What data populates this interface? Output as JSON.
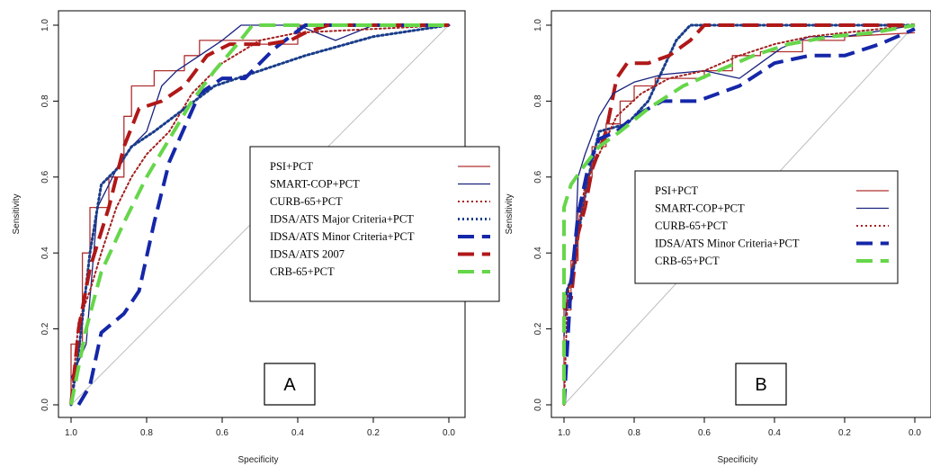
{
  "chart_data": [
    {
      "type": "line",
      "title": "",
      "xlabel": "Specificity",
      "ylabel": "Sensitivity",
      "xlim": [
        1.0,
        0.0
      ],
      "ylim": [
        0.0,
        1.0
      ],
      "x_ticks": [
        "1.0",
        "0.8",
        "0.6",
        "0.4",
        "0.2",
        "0.0"
      ],
      "y_ticks": [
        "0.0",
        "0.2",
        "0.4",
        "0.6",
        "0.8",
        "1.0"
      ],
      "panel_label": "A",
      "legend_position": "right",
      "reference_line": "diagonal",
      "series": [
        {
          "name": "PSI+PCT",
          "color": "#b03030",
          "style": "solid",
          "width": 1.3,
          "points": [
            [
              1.0,
              0.0
            ],
            [
              1.0,
              0.16
            ],
            [
              0.97,
              0.16
            ],
            [
              0.97,
              0.4
            ],
            [
              0.95,
              0.4
            ],
            [
              0.95,
              0.52
            ],
            [
              0.9,
              0.52
            ],
            [
              0.9,
              0.6
            ],
            [
              0.86,
              0.6
            ],
            [
              0.86,
              0.76
            ],
            [
              0.84,
              0.76
            ],
            [
              0.84,
              0.84
            ],
            [
              0.78,
              0.84
            ],
            [
              0.78,
              0.88
            ],
            [
              0.7,
              0.88
            ],
            [
              0.7,
              0.92
            ],
            [
              0.66,
              0.92
            ],
            [
              0.66,
              0.96
            ],
            [
              0.6,
              0.96
            ],
            [
              0.6,
              0.96
            ],
            [
              0.5,
              0.96
            ],
            [
              0.5,
              0.95
            ],
            [
              0.4,
              0.95
            ],
            [
              0.4,
              1.0
            ],
            [
              0.0,
              1.0
            ]
          ]
        },
        {
          "name": "SMART-COP+PCT",
          "color": "#1a237e",
          "style": "solid",
          "width": 1.3,
          "points": [
            [
              1.0,
              0.07
            ],
            [
              0.96,
              0.16
            ],
            [
              0.93,
              0.52
            ],
            [
              0.88,
              0.62
            ],
            [
              0.84,
              0.68
            ],
            [
              0.8,
              0.72
            ],
            [
              0.76,
              0.84
            ],
            [
              0.72,
              0.88
            ],
            [
              0.66,
              0.92
            ],
            [
              0.6,
              0.96
            ],
            [
              0.55,
              1.0
            ],
            [
              0.4,
              1.0
            ],
            [
              0.3,
              0.96
            ],
            [
              0.2,
              1.0
            ],
            [
              0.0,
              1.0
            ]
          ]
        },
        {
          "name": "CURB-65+PCT",
          "color": "#a32020",
          "style": "dot",
          "width": 2.0,
          "points": [
            [
              1.0,
              0.0
            ],
            [
              0.98,
              0.22
            ],
            [
              0.95,
              0.3
            ],
            [
              0.92,
              0.4
            ],
            [
              0.88,
              0.52
            ],
            [
              0.84,
              0.6
            ],
            [
              0.8,
              0.66
            ],
            [
              0.74,
              0.72
            ],
            [
              0.68,
              0.82
            ],
            [
              0.6,
              0.9
            ],
            [
              0.5,
              0.96
            ],
            [
              0.4,
              0.98
            ],
            [
              0.0,
              1.0
            ]
          ]
        },
        {
          "name": "IDSA/ATS Major Criteria+PCT",
          "color": "#1a3d8a",
          "style": "dot",
          "width": 3.0,
          "points": [
            [
              1.0,
              0.0
            ],
            [
              0.98,
              0.14
            ],
            [
              0.95,
              0.4
            ],
            [
              0.92,
              0.58
            ],
            [
              0.88,
              0.62
            ],
            [
              0.84,
              0.68
            ],
            [
              0.78,
              0.72
            ],
            [
              0.7,
              0.78
            ],
            [
              0.62,
              0.84
            ],
            [
              0.5,
              0.88
            ],
            [
              0.38,
              0.92
            ],
            [
              0.2,
              0.97
            ],
            [
              0.0,
              1.0
            ]
          ]
        },
        {
          "name": "IDSA/ATS Minor Criteria+PCT",
          "color": "#1527a8",
          "style": "dash",
          "width": 4.0,
          "points": [
            [
              0.98,
              0.0
            ],
            [
              0.95,
              0.05
            ],
            [
              0.92,
              0.19
            ],
            [
              0.86,
              0.24
            ],
            [
              0.82,
              0.3
            ],
            [
              0.78,
              0.48
            ],
            [
              0.74,
              0.64
            ],
            [
              0.7,
              0.73
            ],
            [
              0.66,
              0.82
            ],
            [
              0.6,
              0.86
            ],
            [
              0.54,
              0.86
            ],
            [
              0.5,
              0.9
            ],
            [
              0.46,
              0.94
            ],
            [
              0.42,
              0.97
            ],
            [
              0.38,
              1.0
            ],
            [
              0.0,
              1.0
            ]
          ]
        },
        {
          "name": "IDSA/ATS 2007",
          "color": "#b01818",
          "style": "dash",
          "width": 4.0,
          "points": [
            [
              1.0,
              0.0
            ],
            [
              0.98,
              0.2
            ],
            [
              0.95,
              0.36
            ],
            [
              0.9,
              0.52
            ],
            [
              0.86,
              0.68
            ],
            [
              0.82,
              0.78
            ],
            [
              0.76,
              0.8
            ],
            [
              0.7,
              0.84
            ],
            [
              0.64,
              0.92
            ],
            [
              0.58,
              0.95
            ],
            [
              0.48,
              0.95
            ],
            [
              0.42,
              0.96
            ],
            [
              0.38,
              0.98
            ],
            [
              0.32,
              1.0
            ],
            [
              0.0,
              1.0
            ]
          ]
        },
        {
          "name": "CRB-65+PCT",
          "color": "#66d64a",
          "style": "dash",
          "width": 4.0,
          "points": [
            [
              1.0,
              0.0
            ],
            [
              0.96,
              0.2
            ],
            [
              0.92,
              0.35
            ],
            [
              0.86,
              0.48
            ],
            [
              0.8,
              0.6
            ],
            [
              0.74,
              0.7
            ],
            [
              0.68,
              0.8
            ],
            [
              0.62,
              0.88
            ],
            [
              0.56,
              0.95
            ],
            [
              0.52,
              1.0
            ],
            [
              0.0,
              1.0
            ]
          ]
        }
      ]
    },
    {
      "type": "line",
      "title": "",
      "xlabel": "Specificity",
      "ylabel": "Sensitivity",
      "xlim": [
        1.0,
        0.0
      ],
      "ylim": [
        0.0,
        1.0
      ],
      "x_ticks": [
        "1.0",
        "0.8",
        "0.6",
        "0.4",
        "0.2",
        "0.0"
      ],
      "y_ticks": [
        "0.0",
        "0.2",
        "0.4",
        "0.6",
        "0.8",
        "1.0"
      ],
      "panel_label": "B",
      "legend_position": "center",
      "reference_line": "diagonal",
      "series": [
        {
          "name": "PSI+PCT",
          "color": "#b03030",
          "style": "solid",
          "width": 1.3,
          "points": [
            [
              1.0,
              0.0
            ],
            [
              1.0,
              0.25
            ],
            [
              0.98,
              0.25
            ],
            [
              0.98,
              0.38
            ],
            [
              0.96,
              0.38
            ],
            [
              0.96,
              0.52
            ],
            [
              0.94,
              0.52
            ],
            [
              0.94,
              0.6
            ],
            [
              0.92,
              0.6
            ],
            [
              0.92,
              0.68
            ],
            [
              0.88,
              0.68
            ],
            [
              0.88,
              0.74
            ],
            [
              0.84,
              0.74
            ],
            [
              0.84,
              0.8
            ],
            [
              0.8,
              0.8
            ],
            [
              0.8,
              0.84
            ],
            [
              0.74,
              0.84
            ],
            [
              0.74,
              0.86
            ],
            [
              0.6,
              0.86
            ],
            [
              0.6,
              0.88
            ],
            [
              0.52,
              0.88
            ],
            [
              0.52,
              0.92
            ],
            [
              0.44,
              0.92
            ],
            [
              0.44,
              0.93
            ],
            [
              0.32,
              0.93
            ],
            [
              0.32,
              0.96
            ],
            [
              0.2,
              0.96
            ],
            [
              0.2,
              0.97
            ],
            [
              0.0,
              0.98
            ]
          ]
        },
        {
          "name": "SMART-COP+PCT",
          "color": "#1a237e",
          "style": "solid",
          "width": 1.3,
          "points": [
            [
              1.0,
              0.18
            ],
            [
              0.99,
              0.3
            ],
            [
              0.97,
              0.36
            ],
            [
              0.96,
              0.6
            ],
            [
              0.94,
              0.66
            ],
            [
              0.9,
              0.76
            ],
            [
              0.86,
              0.82
            ],
            [
              0.8,
              0.85
            ],
            [
              0.72,
              0.87
            ],
            [
              0.6,
              0.88
            ],
            [
              0.5,
              0.86
            ],
            [
              0.44,
              0.9
            ],
            [
              0.38,
              0.94
            ],
            [
              0.3,
              0.97
            ],
            [
              0.2,
              0.97
            ],
            [
              0.0,
              1.0
            ]
          ]
        },
        {
          "name": "CURB-65+PCT",
          "color": "#a32020",
          "style": "dot",
          "width": 2.0,
          "points": [
            [
              1.0,
              0.0
            ],
            [
              0.99,
              0.28
            ],
            [
              0.97,
              0.4
            ],
            [
              0.94,
              0.58
            ],
            [
              0.9,
              0.66
            ],
            [
              0.85,
              0.76
            ],
            [
              0.78,
              0.82
            ],
            [
              0.7,
              0.86
            ],
            [
              0.6,
              0.88
            ],
            [
              0.5,
              0.92
            ],
            [
              0.4,
              0.95
            ],
            [
              0.3,
              0.97
            ],
            [
              0.2,
              0.98
            ],
            [
              0.0,
              1.0
            ]
          ]
        },
        {
          "name": "IDSA/ATS Minor Criteria+PCT",
          "color": "#1527a8",
          "style": "dash",
          "width": 4.0,
          "points": [
            [
              1.0,
              0.0
            ],
            [
              0.98,
              0.32
            ],
            [
              0.96,
              0.5
            ],
            [
              0.93,
              0.63
            ],
            [
              0.9,
              0.7
            ],
            [
              0.85,
              0.72
            ],
            [
              0.8,
              0.76
            ],
            [
              0.72,
              0.8
            ],
            [
              0.62,
              0.8
            ],
            [
              0.5,
              0.84
            ],
            [
              0.4,
              0.9
            ],
            [
              0.3,
              0.92
            ],
            [
              0.2,
              0.92
            ],
            [
              0.1,
              0.95
            ],
            [
              0.0,
              0.99
            ]
          ]
        },
        {
          "name": "CRB-65+PCT",
          "color": "#66d64a",
          "style": "dash",
          "width": 4.0,
          "points": [
            [
              1.0,
              0.0
            ],
            [
              1.0,
              0.52
            ],
            [
              0.98,
              0.58
            ],
            [
              0.95,
              0.62
            ],
            [
              0.9,
              0.68
            ],
            [
              0.84,
              0.72
            ],
            [
              0.76,
              0.78
            ],
            [
              0.66,
              0.84
            ],
            [
              0.56,
              0.88
            ],
            [
              0.46,
              0.92
            ],
            [
              0.36,
              0.95
            ],
            [
              0.24,
              0.97
            ],
            [
              0.12,
              0.98
            ],
            [
              0.0,
              1.0
            ]
          ]
        }
      ],
      "extra_series": [
        {
          "name": "IDSA/ATS Major Criteria+PCT",
          "color": "#1a3d8a",
          "style": "dot",
          "width": 3.0,
          "points": [
            [
              1.0,
              0.28
            ],
            [
              0.98,
              0.33
            ],
            [
              0.95,
              0.5
            ],
            [
              0.93,
              0.6
            ],
            [
              0.9,
              0.72
            ],
            [
              0.86,
              0.73
            ],
            [
              0.82,
              0.74
            ],
            [
              0.76,
              0.8
            ],
            [
              0.72,
              0.88
            ],
            [
              0.68,
              0.96
            ],
            [
              0.64,
              1.0
            ],
            [
              0.0,
              1.0
            ]
          ]
        },
        {
          "name": "IDSA/ATS 2007",
          "color": "#b01818",
          "style": "dash",
          "width": 4.0,
          "points": [
            [
              1.0,
              0.25
            ],
            [
              0.98,
              0.28
            ],
            [
              0.96,
              0.45
            ],
            [
              0.94,
              0.52
            ],
            [
              0.92,
              0.62
            ],
            [
              0.88,
              0.72
            ],
            [
              0.85,
              0.86
            ],
            [
              0.82,
              0.9
            ],
            [
              0.76,
              0.9
            ],
            [
              0.7,
              0.92
            ],
            [
              0.64,
              0.96
            ],
            [
              0.6,
              1.0
            ],
            [
              0.0,
              1.0
            ]
          ]
        }
      ]
    }
  ]
}
